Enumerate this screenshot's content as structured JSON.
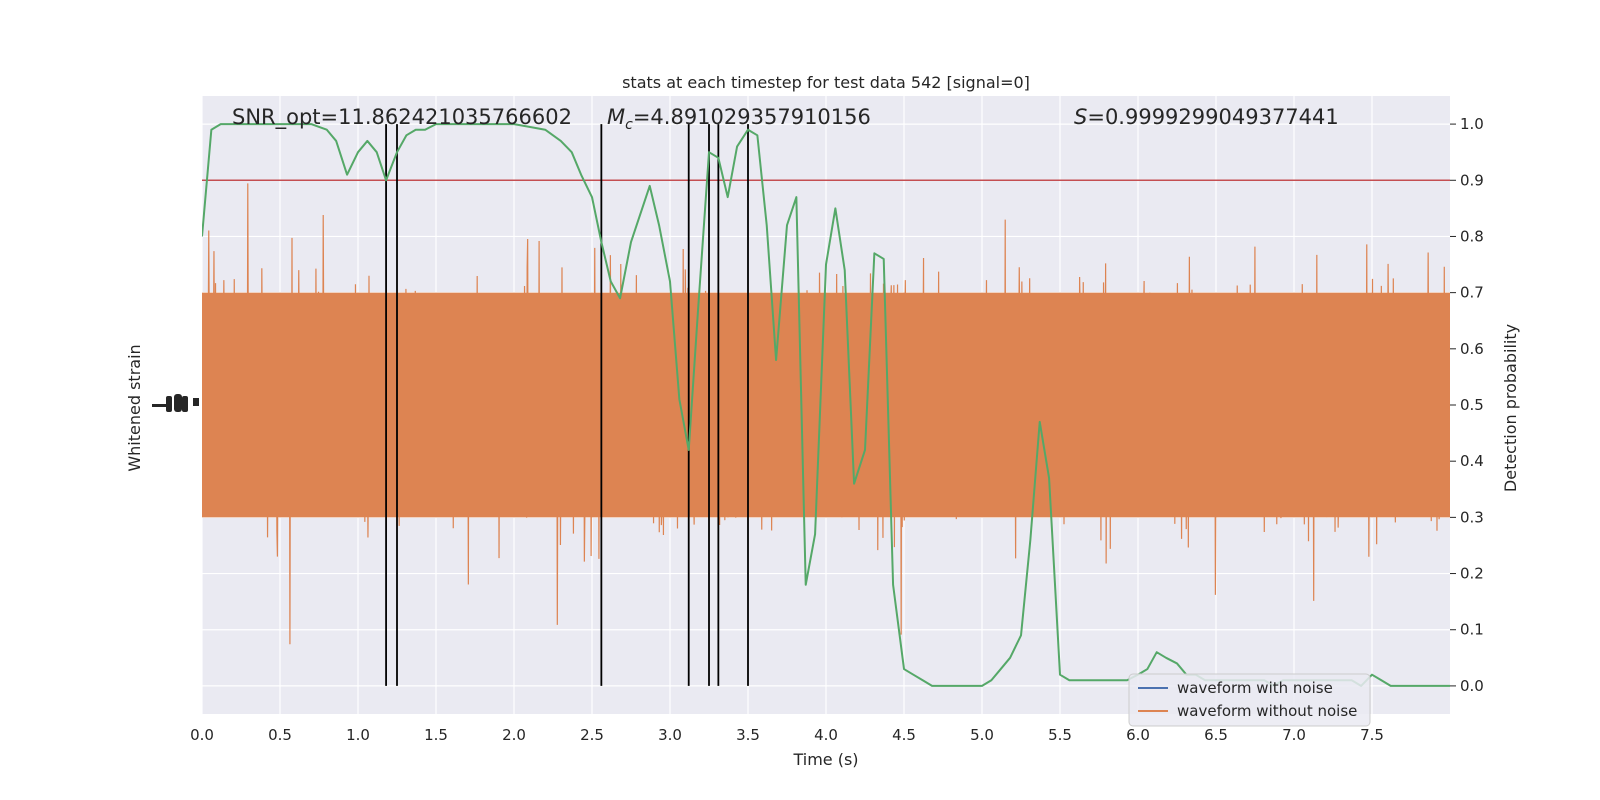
{
  "chart_data": {
    "type": "line",
    "title": "stats at each timestep for test data 542 [signal=0]",
    "xlabel": "Time (s)",
    "ylabel_left": "Whitened strain",
    "ylabel_right": "Detection probability",
    "xlim": [
      0,
      8.0
    ],
    "ylim_right": [
      -0.05,
      1.05
    ],
    "x_ticks": [
      "0.0",
      "0.5",
      "1.0",
      "1.5",
      "2.0",
      "2.5",
      "3.0",
      "3.5",
      "4.0",
      "4.5",
      "5.0",
      "5.5",
      "6.0",
      "6.5",
      "7.0",
      "7.5"
    ],
    "y_ticks_right": [
      "0.0",
      "0.1",
      "0.2",
      "0.3",
      "0.4",
      "0.5",
      "0.6",
      "0.7",
      "0.8",
      "0.9",
      "1.0"
    ],
    "grid": true,
    "legend_position": "lower-right",
    "annotations": {
      "snr": "SNR_opt=11.862421035766602",
      "mc_symbol": "M",
      "mc_subscript": "c",
      "mc_value": "=4.891029357910156",
      "s_symbol": "S",
      "s_value": "=0.9999299049377441"
    },
    "threshold": {
      "value": 0.9,
      "color": "#c44e52"
    },
    "event_lines_x": [
      1.18,
      1.25,
      2.56,
      3.12,
      3.25,
      3.31,
      3.5
    ],
    "series": [
      {
        "name": "waveform with noise",
        "color": "#4c72b0"
      },
      {
        "name": "waveform without noise",
        "color": "#dd8452"
      }
    ],
    "probability": {
      "color": "#55a868",
      "x": [
        0.0,
        0.06,
        0.12,
        0.25,
        0.4,
        0.55,
        0.7,
        0.8,
        0.86,
        0.93,
        1.0,
        1.06,
        1.12,
        1.18,
        1.25,
        1.31,
        1.37,
        1.43,
        1.5,
        1.6,
        1.8,
        2.0,
        2.2,
        2.3,
        2.37,
        2.43,
        2.5,
        2.56,
        2.62,
        2.68,
        2.75,
        2.87,
        2.93,
        3.0,
        3.06,
        3.12,
        3.18,
        3.25,
        3.31,
        3.37,
        3.43,
        3.5,
        3.56,
        3.62,
        3.68,
        3.75,
        3.81,
        3.87,
        3.93,
        4.0,
        4.06,
        4.12,
        4.18,
        4.25,
        4.31,
        4.37,
        4.43,
        4.5,
        4.56,
        4.62,
        4.68,
        4.75,
        4.9,
        5.0,
        5.06,
        5.12,
        5.18,
        5.25,
        5.31,
        5.37,
        5.43,
        5.5,
        5.56,
        5.62,
        5.68,
        5.75,
        5.81,
        5.87,
        5.93,
        6.0,
        6.06,
        6.12,
        6.18,
        6.25,
        6.31,
        6.37,
        6.43,
        6.5,
        6.56,
        6.62,
        6.68,
        6.75,
        6.81,
        6.87,
        6.93,
        7.0,
        7.06,
        7.12,
        7.18,
        7.25,
        7.31,
        7.37,
        7.43,
        7.5,
        7.56,
        7.62,
        7.68,
        7.75,
        7.81,
        7.87,
        7.93,
        8.0
      ],
      "y": [
        0.8,
        0.99,
        1.0,
        1.0,
        1.0,
        1.0,
        1.0,
        0.99,
        0.97,
        0.91,
        0.95,
        0.97,
        0.95,
        0.9,
        0.95,
        0.98,
        0.99,
        0.99,
        1.0,
        1.0,
        1.0,
        1.0,
        0.99,
        0.97,
        0.95,
        0.91,
        0.87,
        0.79,
        0.72,
        0.69,
        0.79,
        0.89,
        0.82,
        0.72,
        0.51,
        0.42,
        0.67,
        0.95,
        0.94,
        0.87,
        0.96,
        0.99,
        0.98,
        0.82,
        0.58,
        0.82,
        0.87,
        0.18,
        0.27,
        0.75,
        0.85,
        0.74,
        0.36,
        0.42,
        0.77,
        0.76,
        0.18,
        0.03,
        0.02,
        0.01,
        0.0,
        0.0,
        0.0,
        0.0,
        0.01,
        0.03,
        0.05,
        0.09,
        0.26,
        0.47,
        0.37,
        0.02,
        0.01,
        0.01,
        0.01,
        0.01,
        0.01,
        0.01,
        0.01,
        0.02,
        0.03,
        0.06,
        0.05,
        0.04,
        0.02,
        0.02,
        0.01,
        0.01,
        0.01,
        0.01,
        0.01,
        0.01,
        0.01,
        0.0,
        0.01,
        0.01,
        0.01,
        0.01,
        0.01,
        0.01,
        0.01,
        0.01,
        0.0,
        0.02,
        0.01,
        0.0,
        0.0,
        0.0,
        0.0,
        0.0,
        0.0,
        0.0
      ]
    }
  }
}
